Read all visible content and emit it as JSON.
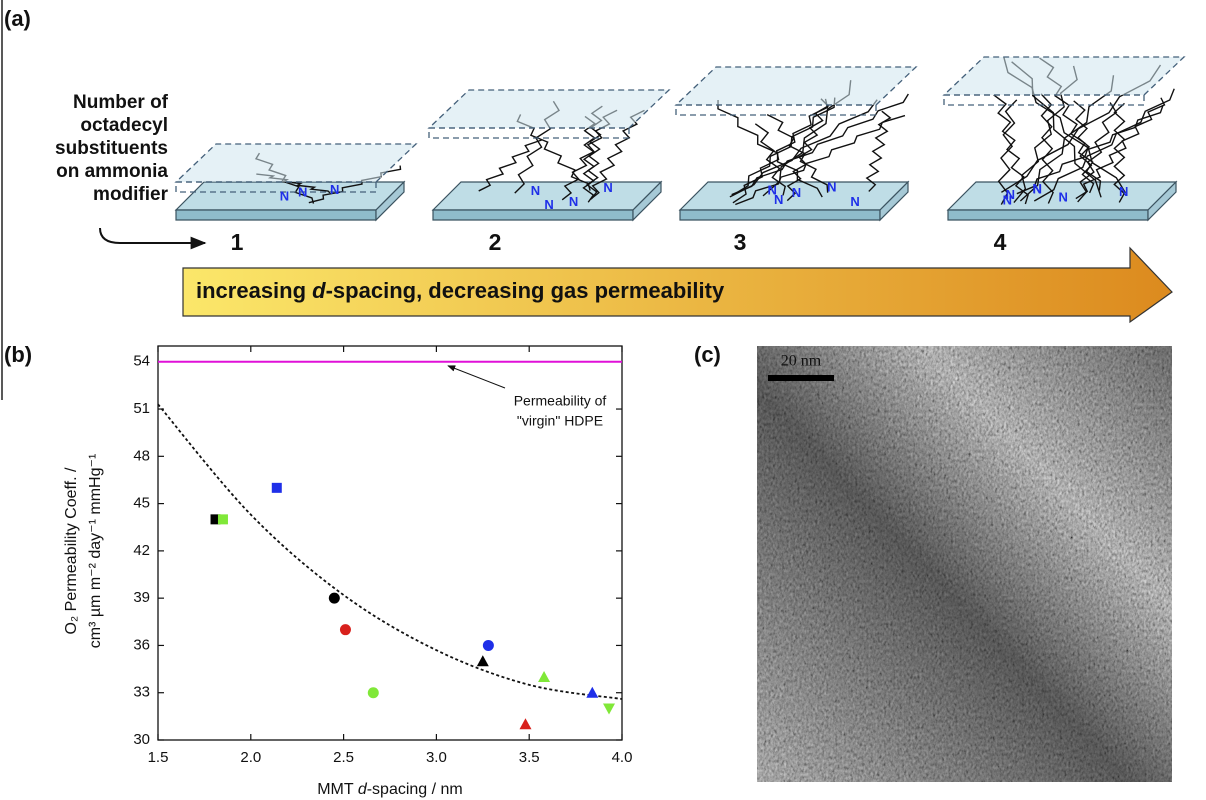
{
  "panel_a": {
    "label": "(a)",
    "modifier_note": [
      "Number of",
      "octadecyl",
      "substituents",
      "on ammonia",
      "modifier"
    ],
    "n_label": "N",
    "stages": [
      "1",
      "2",
      "3",
      "4"
    ],
    "arrow_text": [
      "increasing ",
      "d",
      "-spacing, decreasing gas permeability"
    ]
  },
  "panel_c": {
    "label": "(c)",
    "scale_bar": "20 nm"
  },
  "chart_data": {
    "type": "scatter",
    "panel_label": "(b)",
    "x_label": [
      "MMT ",
      "d",
      "-spacing / nm"
    ],
    "y_label": [
      "O₂ Permeability Coeff. /",
      "cm³ µm m⁻² day⁻¹ mmHg⁻¹"
    ],
    "xlim": [
      1.5,
      4.0
    ],
    "xticks": [
      1.5,
      {
        "value": 2,
        "label": "2.0"
      },
      2.5,
      {
        "value": 3,
        "label": "3.0"
      },
      3.5,
      {
        "value": 4,
        "label": "4.0"
      }
    ],
    "ylim": [
      30,
      55
    ],
    "yticks": [
      30,
      33,
      36,
      39,
      42,
      45,
      48,
      51,
      54
    ],
    "series": [
      {
        "color": "#000000",
        "markers": [
          "square",
          "circle",
          "triangle"
        ],
        "x": [
          1.81,
          2.45,
          3.25
        ],
        "values": [
          44,
          39,
          35
        ]
      },
      {
        "color": "#80e838",
        "markers": [
          "square",
          "circle",
          "triangle",
          "triangle-down"
        ],
        "x": [
          1.85,
          2.66,
          3.58,
          3.93
        ],
        "values": [
          44,
          33,
          34,
          32
        ]
      },
      {
        "color": "#1f2fe8",
        "markers": [
          "square",
          "circle",
          "triangle"
        ],
        "x": [
          2.14,
          3.28,
          3.84
        ],
        "values": [
          46,
          36,
          33
        ]
      },
      {
        "color": "#d8201c",
        "markers": [
          "circle",
          "triangle"
        ],
        "x": [
          2.51,
          3.48
        ],
        "values": [
          37,
          31
        ]
      }
    ],
    "reference_line": {
      "value": 54,
      "color": "#e010d8"
    },
    "annotation": [
      "Permeability of",
      "\"virgin\" HDPE"
    ],
    "fit": {
      "x": [
        1.5,
        2.0,
        2.5,
        3.0,
        3.5,
        4.0
      ],
      "values": [
        51.3,
        44.3,
        39.2,
        35.7,
        33.5,
        32.6
      ]
    }
  }
}
